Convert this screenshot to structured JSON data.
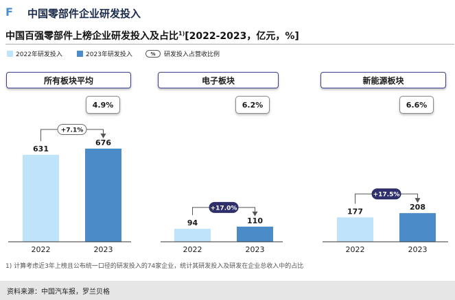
{
  "section": {
    "letter": "F",
    "title": "中国零部件企业研发投入"
  },
  "subtitle": {
    "main": "中国百强零部件上榜企业研发投入及占比",
    "sup": "1)",
    "units": "[2022-2023，亿元，%]"
  },
  "legend": {
    "s2022": "2022年研发投入",
    "s2023": "2023年研发投入",
    "pct_symbol": "%",
    "pct_label": "研发投入占营收比例"
  },
  "colors": {
    "s2022": "#bfe3f9",
    "s2023": "#4a8bc8",
    "accent_dark": "#2e2f6b",
    "header_border": "#3c3f8f"
  },
  "footnote": "1) 计算考虑近3年上榜且公布统一口径的研发投入的74家企业，统计其研发投入及研发在企业总收入中的占比",
  "source": "资料来源：中国汽车报，罗兰贝格",
  "chart_data": [
    {
      "type": "bar",
      "title": "所有板块平均",
      "categories": [
        "2022",
        "2023"
      ],
      "values": [
        631,
        676
      ],
      "share": "4.9%",
      "growth": "+7.1%",
      "growth_style": "light"
    },
    {
      "type": "bar",
      "title": "电子板块",
      "categories": [
        "2022",
        "2023"
      ],
      "values": [
        94,
        110
      ],
      "share": "6.2%",
      "growth": "+17.0%",
      "growth_style": "dark"
    },
    {
      "type": "bar",
      "title": "新能源板块",
      "categories": [
        "2022",
        "2023"
      ],
      "values": [
        177,
        208
      ],
      "share": "6.6%",
      "growth": "+17.5%",
      "growth_style": "dark"
    }
  ]
}
